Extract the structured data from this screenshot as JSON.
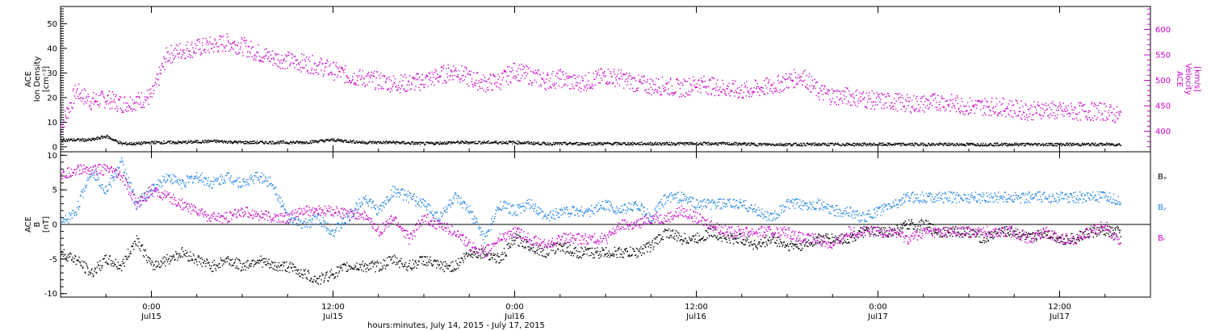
{
  "chart_data": [
    {
      "type": "scatter",
      "panel": "top",
      "ylabel_left": [
        "ACE",
        "Ion Density",
        "[cm⁻³]"
      ],
      "ylabel_right": [
        "ACE",
        "Velocity",
        "[km/s]"
      ],
      "ylim_left": [
        -2,
        57
      ],
      "yticks_left": [
        "0",
        "10",
        "20",
        "30",
        "40",
        "50"
      ],
      "ylim_right": [
        360,
        645
      ],
      "yticks_right": [
        "400",
        "450",
        "500",
        "550",
        "600"
      ],
      "xlim_hours": [
        -6,
        66
      ],
      "series": [
        {
          "axis": "left",
          "color": "#000000",
          "x": [
            -6,
            -4,
            -3,
            -2,
            -1,
            0,
            2,
            4,
            6,
            8,
            10,
            12,
            14,
            16,
            18,
            20,
            22,
            24,
            26,
            28,
            30,
            32,
            34,
            36,
            38,
            40,
            42,
            44,
            46,
            48,
            50,
            52,
            54,
            56,
            58,
            60,
            62,
            64
          ],
          "values": [
            3,
            3,
            4.5,
            1.5,
            1.5,
            2,
            2,
            2.5,
            2,
            2,
            2,
            3,
            2,
            2,
            1.5,
            2,
            2,
            2,
            1.5,
            1.5,
            1.5,
            1.5,
            1.5,
            1.5,
            1.5,
            1.2,
            1.2,
            1.2,
            1.2,
            1.2,
            1.2,
            1.2,
            1.2,
            1.2,
            1.2,
            1.2,
            1.2,
            1.2
          ]
        },
        {
          "axis": "right",
          "color": "#c800c8",
          "x": [
            -6,
            -5,
            -4,
            -3,
            -2,
            -1,
            0,
            1,
            2,
            3,
            4,
            5,
            6,
            7,
            8,
            9,
            10,
            11,
            12,
            13,
            14,
            15,
            16,
            17,
            18,
            19,
            20,
            21,
            22,
            23,
            24,
            25,
            26,
            27,
            28,
            29,
            30,
            31,
            32,
            33,
            34,
            35,
            36,
            37,
            38,
            39,
            40,
            41,
            42,
            43,
            44,
            45,
            46,
            47,
            48,
            49,
            50,
            51,
            52,
            53,
            54,
            55,
            56,
            57,
            58,
            59,
            60,
            61,
            62,
            63,
            64
          ],
          "values": [
            410,
            480,
            460,
            465,
            455,
            460,
            470,
            550,
            560,
            565,
            570,
            575,
            568,
            555,
            545,
            540,
            535,
            530,
            520,
            510,
            505,
            500,
            495,
            495,
            500,
            510,
            520,
            505,
            495,
            500,
            520,
            510,
            500,
            505,
            495,
            500,
            510,
            505,
            495,
            490,
            490,
            485,
            495,
            490,
            485,
            480,
            485,
            490,
            500,
            510,
            480,
            470,
            470,
            465,
            460,
            460,
            455,
            455,
            460,
            455,
            450,
            450,
            450,
            445,
            440,
            445,
            440,
            440,
            440,
            440,
            430
          ]
        }
      ]
    },
    {
      "type": "scatter",
      "panel": "bottom",
      "ylabel_left": [
        "ACE",
        "B",
        "[nT]"
      ],
      "ylim": [
        -10.5,
        10.5
      ],
      "yticks": [
        "-10",
        "-5",
        "0",
        "5",
        "10"
      ],
      "xlim_hours": [
        -6,
        66
      ],
      "zero_line": true,
      "legend": [
        "Bₓ",
        "Bᵧ",
        "Bᵣ"
      ],
      "legend_placement": "right",
      "series": [
        {
          "name": "Bₓ",
          "color": "#000000",
          "x": [
            -6,
            -5,
            -4,
            -3,
            -2,
            -1,
            0,
            1,
            2,
            3,
            4,
            5,
            6,
            7,
            8,
            9,
            10,
            11,
            12,
            13,
            14,
            15,
            16,
            17,
            18,
            19,
            20,
            21,
            22,
            23,
            24,
            25,
            26,
            27,
            28,
            29,
            30,
            31,
            32,
            33,
            34,
            35,
            36,
            37,
            38,
            39,
            40,
            41,
            42,
            43,
            44,
            45,
            46,
            47,
            48,
            49,
            50,
            51,
            52,
            53,
            54,
            55,
            56,
            57,
            58,
            59,
            60,
            61,
            62,
            63,
            64
          ],
          "values": [
            -4,
            -5,
            -7,
            -5,
            -6,
            -2,
            -6,
            -5,
            -4,
            -5,
            -6,
            -5,
            -6,
            -5,
            -6,
            -6,
            -7,
            -8,
            -7,
            -6,
            -6,
            -6,
            -5,
            -6,
            -5,
            -6,
            -6,
            -4,
            -4,
            -5,
            -2,
            -3,
            -4,
            -3,
            -4,
            -4,
            -4,
            -4,
            -4,
            -3,
            -1,
            -2,
            -2,
            -1,
            -2,
            -2,
            -3,
            -2,
            -3,
            -3,
            -2,
            -2,
            -2,
            -1,
            -1,
            -1,
            0,
            0,
            -1,
            -1,
            -1,
            -2,
            -1,
            -1,
            -2,
            -1,
            -2,
            -2,
            -1,
            -1,
            -1
          ]
        },
        {
          "name": "Bᵧ",
          "color": "#1e82e6",
          "x": [
            -6,
            -5,
            -4,
            -3,
            -2,
            -1,
            0,
            1,
            2,
            3,
            4,
            5,
            6,
            7,
            8,
            9,
            10,
            11,
            12,
            13,
            14,
            15,
            16,
            17,
            18,
            19,
            20,
            21,
            22,
            23,
            24,
            25,
            26,
            27,
            28,
            29,
            30,
            31,
            32,
            33,
            34,
            35,
            36,
            37,
            38,
            39,
            40,
            41,
            42,
            43,
            44,
            45,
            46,
            47,
            48,
            49,
            50,
            51,
            52,
            53,
            54,
            55,
            56,
            57,
            58,
            59,
            60,
            61,
            62,
            63,
            64
          ],
          "values": [
            0,
            2,
            8,
            5,
            9,
            3,
            5,
            7,
            6,
            7,
            6,
            7,
            6,
            7,
            6,
            1,
            0,
            1,
            -1,
            1,
            4,
            2,
            5,
            4,
            3,
            1,
            4,
            2,
            -2,
            3,
            2,
            3,
            1,
            2,
            2,
            2,
            3,
            2,
            3,
            1,
            4,
            4,
            3,
            3,
            3,
            3,
            2,
            1,
            3,
            3,
            3,
            2,
            2,
            1,
            2,
            3,
            4,
            4,
            4,
            4,
            4,
            4,
            4,
            4,
            4,
            4,
            4,
            4,
            4,
            4,
            3.5
          ]
        },
        {
          "name": "Bᵣ",
          "color": "#c800c8",
          "x": [
            -6,
            -5,
            -4,
            -3,
            -2,
            -1,
            0,
            1,
            2,
            3,
            4,
            5,
            6,
            7,
            8,
            9,
            10,
            11,
            12,
            13,
            14,
            15,
            16,
            17,
            18,
            19,
            20,
            21,
            22,
            23,
            24,
            25,
            26,
            27,
            28,
            29,
            30,
            31,
            32,
            33,
            34,
            35,
            36,
            37,
            38,
            39,
            40,
            41,
            42,
            43,
            44,
            45,
            46,
            47,
            48,
            49,
            50,
            51,
            52,
            53,
            54,
            55,
            56,
            57,
            58,
            59,
            60,
            61,
            62,
            63,
            64
          ],
          "values": [
            7,
            8,
            8,
            8,
            7,
            3,
            5,
            4,
            3,
            2,
            1,
            1,
            2,
            1.5,
            1,
            1,
            2,
            2,
            2,
            1.5,
            1.5,
            -1,
            1,
            -2,
            1,
            0,
            -1,
            -3,
            -4,
            -2,
            -1,
            -2,
            -3,
            -2,
            -2,
            -2,
            -2,
            0,
            0,
            1,
            1,
            2,
            1,
            0,
            -1,
            -1,
            -1,
            -1,
            -1,
            -2,
            -2,
            -3,
            -1,
            -1,
            -1,
            -1,
            -2,
            -1,
            -1,
            -1,
            -1,
            -1,
            -1,
            -1,
            -2,
            -1,
            -2,
            -2,
            -1,
            0,
            -3
          ]
        }
      ]
    }
  ],
  "x_axis": {
    "ticks": [
      {
        "hours": 0,
        "label": "0:00",
        "day": "Jul15"
      },
      {
        "hours": 12,
        "label": "12:00",
        "day": "Jul15"
      },
      {
        "hours": 24,
        "label": "0:00",
        "day": "Jul16"
      },
      {
        "hours": 36,
        "label": "12:00",
        "day": "Jul16"
      },
      {
        "hours": 48,
        "label": "0:00",
        "day": "Jul17"
      },
      {
        "hours": 60,
        "label": "12:00",
        "day": "Jul17"
      }
    ],
    "title": "hours:minutes, July 14, 2015 - July 17, 2015"
  },
  "colors": {
    "black": "#000000",
    "magenta": "#c800c8",
    "blue": "#1e82e6"
  }
}
